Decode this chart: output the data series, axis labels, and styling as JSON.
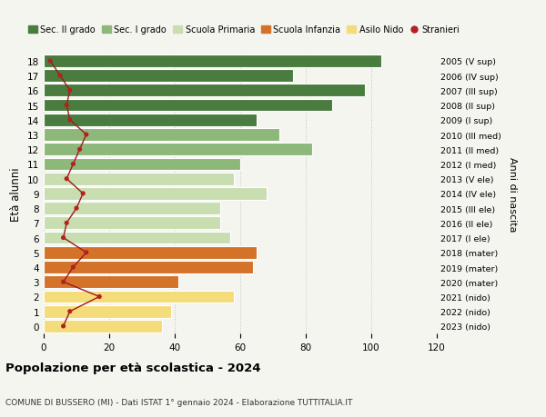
{
  "ages": [
    18,
    17,
    16,
    15,
    14,
    13,
    12,
    11,
    10,
    9,
    8,
    7,
    6,
    5,
    4,
    3,
    2,
    1,
    0
  ],
  "values": [
    103,
    76,
    98,
    88,
    65,
    72,
    82,
    60,
    58,
    68,
    54,
    54,
    57,
    65,
    64,
    41,
    58,
    39,
    36
  ],
  "stranieri": [
    2,
    5,
    8,
    7,
    8,
    13,
    11,
    9,
    7,
    12,
    10,
    7,
    6,
    13,
    9,
    6,
    17,
    8,
    6
  ],
  "right_labels": [
    "2005 (V sup)",
    "2006 (IV sup)",
    "2007 (III sup)",
    "2008 (II sup)",
    "2009 (I sup)",
    "2010 (III med)",
    "2011 (II med)",
    "2012 (I med)",
    "2013 (V ele)",
    "2014 (IV ele)",
    "2015 (III ele)",
    "2016 (II ele)",
    "2017 (I ele)",
    "2018 (mater)",
    "2019 (mater)",
    "2020 (mater)",
    "2021 (nido)",
    "2022 (nido)",
    "2023 (nido)"
  ],
  "colors": {
    "sec2": "#4a7c3f",
    "sec1": "#8db87a",
    "primaria": "#c8ddb0",
    "infanzia": "#d4722a",
    "nido": "#f5dc7a",
    "stranieri_line": "#9e1a1a",
    "stranieri_dot": "#b52020"
  },
  "age_school": {
    "sec2": [
      18,
      17,
      16,
      15,
      14
    ],
    "sec1": [
      13,
      12,
      11
    ],
    "primaria": [
      10,
      9,
      8,
      7,
      6
    ],
    "infanzia": [
      5,
      4,
      3
    ],
    "nido": [
      2,
      1,
      0
    ]
  },
  "xlim": [
    0,
    120
  ],
  "ylabel": "Età alunni",
  "right_ylabel": "Anni di nascita",
  "title": "Popolazione per età scolastica - 2024",
  "subtitle": "COMUNE DI BUSSERO (MI) - Dati ISTAT 1° gennaio 2024 - Elaborazione TUTTITALIA.IT",
  "legend_labels": [
    "Sec. II grado",
    "Sec. I grado",
    "Scuola Primaria",
    "Scuola Infanzia",
    "Asilo Nido",
    "Stranieri"
  ],
  "bg_color": "#f5f5f0"
}
